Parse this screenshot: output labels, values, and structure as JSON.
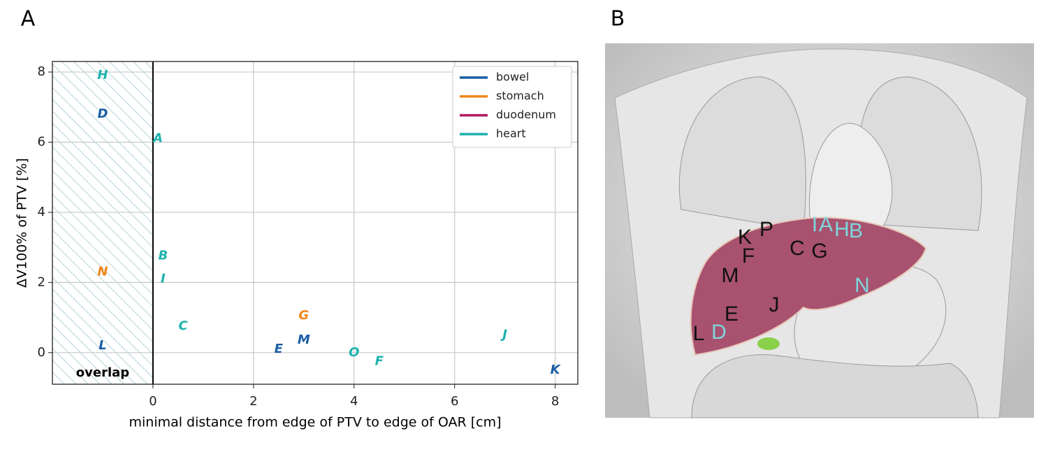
{
  "panel_labels": [
    "A",
    "B"
  ],
  "chart_data": {
    "type": "scatter",
    "x_label": "minimal distance from edge of PTV to edge of OAR [cm]",
    "y_label": "ΔV100% of PTV [%]",
    "xlim": [
      -2,
      8.45
    ],
    "ylim": [
      -0.9,
      8.3
    ],
    "xticks": [
      0,
      2,
      4,
      6,
      8
    ],
    "yticks": [
      0,
      2,
      4,
      6,
      8
    ],
    "grid": true,
    "legend": "upper right",
    "overlap_region": [
      -2,
      0
    ],
    "overlap_label": "overlap",
    "series": [
      {
        "name": "bowel",
        "color": "#1b5ea6",
        "labels": [
          "D",
          "L",
          "E",
          "M",
          "K"
        ],
        "x": [
          -1,
          -1,
          2.5,
          3.0,
          8.0
        ],
        "values": [
          6.8,
          0.2,
          0.1,
          0.35,
          -0.5
        ]
      },
      {
        "name": "stomach",
        "color": "#f0861b",
        "labels": [
          "N",
          "G"
        ],
        "x": [
          -1,
          3.0
        ],
        "values": [
          2.3,
          1.05
        ]
      },
      {
        "name": "duodenum",
        "color": "#b01a5f",
        "labels": [],
        "x": [],
        "values": []
      },
      {
        "name": "heart",
        "color": "#1eb3ad",
        "labels": [
          "H",
          "A",
          "B",
          "I",
          "C",
          "O",
          "F",
          "J"
        ],
        "x": [
          -1,
          0.1,
          0.2,
          0.2,
          0.6,
          4.0,
          4.5,
          7.0
        ],
        "values": [
          7.9,
          6.1,
          2.75,
          2.1,
          0.75,
          0.0,
          -0.25,
          0.5
        ]
      }
    ]
  },
  "image_labels": [
    {
      "text": "I",
      "color": "#7fd6dc"
    },
    {
      "text": "A",
      "color": "#7fd6dc"
    },
    {
      "text": "H",
      "color": "#7fd6dc"
    },
    {
      "text": "B",
      "color": "#7fd6dc"
    },
    {
      "text": "K",
      "color": "#111111"
    },
    {
      "text": "P",
      "color": "#111111"
    },
    {
      "text": "F",
      "color": "#111111"
    },
    {
      "text": "C",
      "color": "#111111"
    },
    {
      "text": "G",
      "color": "#111111"
    },
    {
      "text": "M",
      "color": "#111111"
    },
    {
      "text": "J",
      "color": "#111111"
    },
    {
      "text": "E",
      "color": "#111111"
    },
    {
      "text": "L",
      "color": "#111111"
    },
    {
      "text": "D",
      "color": "#7fd6dc"
    },
    {
      "text": "N",
      "color": "#7fd6dc"
    }
  ]
}
